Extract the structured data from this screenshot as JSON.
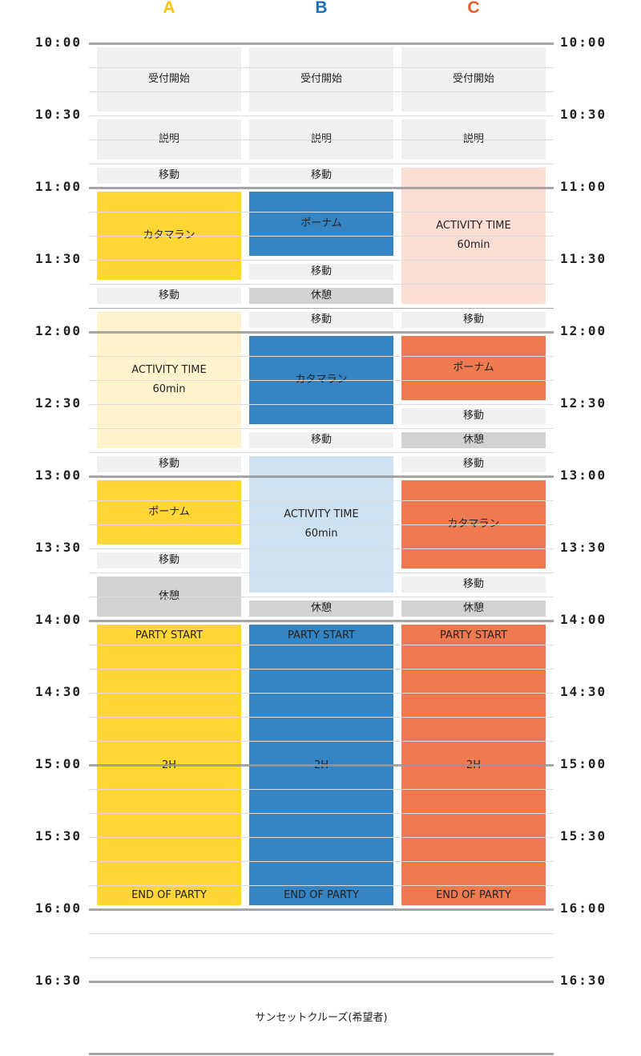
{
  "columns": [
    {
      "label": "A",
      "color": "#FFC400"
    },
    {
      "label": "B",
      "color": "#1B6FB8"
    },
    {
      "label": "C",
      "color": "#EE5A26"
    }
  ],
  "time_labels": [
    "10:00",
    "10:30",
    "11:00",
    "11:30",
    "12:00",
    "12:30",
    "13:00",
    "13:30",
    "14:00",
    "14:30",
    "15:00",
    "15:30",
    "16:00",
    "16:30"
  ],
  "styles": {
    "gray": "#F0F0F0",
    "rest": "#D2D2D2",
    "A_main": "#FFD633",
    "A_light": "#FEF3CD",
    "B_main": "#3585C5",
    "B_light": "#CDE1F1",
    "C_main": "#F07A50",
    "C_light": "#FADDD3"
  },
  "schedule": [
    [
      {
        "start": "10:00",
        "end": "10:30",
        "style": "gray",
        "lines": [
          "受付開始"
        ]
      },
      {
        "start": "10:30",
        "end": "10:50",
        "style": "gray",
        "lines": [
          "説明"
        ]
      },
      {
        "start": "10:50",
        "end": "11:00",
        "style": "gray",
        "lines": [
          "移動"
        ]
      },
      {
        "start": "11:00",
        "end": "11:40",
        "style": "A_main",
        "lines": [
          "カタマラン"
        ]
      },
      {
        "start": "11:40",
        "end": "11:50",
        "style": "gray",
        "lines": [
          "移動"
        ]
      },
      {
        "start": "11:50",
        "end": "12:50",
        "style": "A_light",
        "lines": [
          "ACTIVITY TIME",
          "60min"
        ]
      },
      {
        "start": "12:50",
        "end": "13:00",
        "style": "gray",
        "lines": [
          "移動"
        ]
      },
      {
        "start": "13:00",
        "end": "13:30",
        "style": "A_main",
        "lines": [
          "ポーナム"
        ]
      },
      {
        "start": "13:30",
        "end": "13:40",
        "style": "gray",
        "lines": [
          "移動"
        ]
      },
      {
        "start": "13:40",
        "end": "14:00",
        "style": "rest",
        "lines": [
          "休憩"
        ]
      },
      {
        "start": "14:00",
        "end": "16:00",
        "style": "A_main",
        "party": true,
        "lines": [
          "PARTY START",
          "2H",
          "END OF PARTY"
        ]
      }
    ],
    [
      {
        "start": "10:00",
        "end": "10:30",
        "style": "gray",
        "lines": [
          "受付開始"
        ]
      },
      {
        "start": "10:30",
        "end": "10:50",
        "style": "gray",
        "lines": [
          "説明"
        ]
      },
      {
        "start": "10:50",
        "end": "11:00",
        "style": "gray",
        "lines": [
          "移動"
        ]
      },
      {
        "start": "11:00",
        "end": "11:30",
        "style": "B_main",
        "lines": [
          "ポーナム"
        ]
      },
      {
        "start": "11:30",
        "end": "11:40",
        "style": "gray",
        "lines": [
          "移動"
        ]
      },
      {
        "start": "11:40",
        "end": "11:50",
        "style": "rest",
        "lines": [
          "休憩"
        ]
      },
      {
        "start": "11:50",
        "end": "12:00",
        "style": "gray",
        "lines": [
          "移動"
        ]
      },
      {
        "start": "12:00",
        "end": "12:40",
        "style": "B_main",
        "lines": [
          "カタマラン"
        ]
      },
      {
        "start": "12:40",
        "end": "12:50",
        "style": "gray",
        "lines": [
          "移動"
        ]
      },
      {
        "start": "12:50",
        "end": "13:50",
        "style": "B_light",
        "lines": [
          "ACTIVITY TIME",
          "60min"
        ]
      },
      {
        "start": "13:50",
        "end": "14:00",
        "style": "rest",
        "lines": [
          "休憩"
        ]
      },
      {
        "start": "14:00",
        "end": "16:00",
        "style": "B_main",
        "party": true,
        "lines": [
          "PARTY START",
          "2H",
          "END OF PARTY"
        ]
      }
    ],
    [
      {
        "start": "10:00",
        "end": "10:30",
        "style": "gray",
        "lines": [
          "受付開始"
        ]
      },
      {
        "start": "10:30",
        "end": "10:50",
        "style": "gray",
        "lines": [
          "説明"
        ]
      },
      {
        "start": "10:50",
        "end": "11:50",
        "style": "C_light",
        "lines": [
          "ACTIVITY TIME",
          "60min"
        ]
      },
      {
        "start": "11:50",
        "end": "12:00",
        "style": "gray",
        "lines": [
          "移動"
        ]
      },
      {
        "start": "12:00",
        "end": "12:30",
        "style": "C_main",
        "lines": [
          "ポーナム"
        ]
      },
      {
        "start": "12:30",
        "end": "12:40",
        "style": "gray",
        "lines": [
          "移動"
        ]
      },
      {
        "start": "12:40",
        "end": "12:50",
        "style": "rest",
        "lines": [
          "休憩"
        ]
      },
      {
        "start": "12:50",
        "end": "13:00",
        "style": "gray",
        "lines": [
          "移動"
        ]
      },
      {
        "start": "13:00",
        "end": "13:40",
        "style": "C_main",
        "lines": [
          "カタマラン"
        ]
      },
      {
        "start": "13:40",
        "end": "13:50",
        "style": "gray",
        "lines": [
          "移動"
        ]
      },
      {
        "start": "13:50",
        "end": "14:00",
        "style": "rest",
        "lines": [
          "休憩"
        ]
      },
      {
        "start": "14:00",
        "end": "16:00",
        "style": "C_main",
        "party": true,
        "lines": [
          "PARTY START",
          "2H",
          "END OF PARTY"
        ]
      }
    ]
  ],
  "footer": "サンセットクルーズ(希望者)"
}
